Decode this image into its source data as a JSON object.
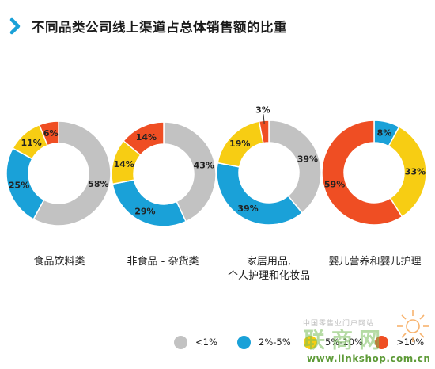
{
  "header": {
    "title": "不同品类公司线上渠道占总体销售额的比重",
    "chevron_icon": "chevron-right-icon"
  },
  "colors": {
    "lt1": "#c2c2c2",
    "p2_5": "#1aa1d8",
    "p5_10": "#f7cd13",
    "gt10": "#ef4e23",
    "accent": "#1aa1d8"
  },
  "chart_data": {
    "type": "pie",
    "donut": true,
    "legend_position": "bottom",
    "series_names": [
      "<1%",
      "2%-5%",
      "5%-10%",
      ">10%"
    ],
    "charts": [
      {
        "category": "食品饮料类",
        "values": [
          58,
          25,
          11,
          6
        ]
      },
      {
        "category": "非食品 - 杂货类",
        "values": [
          43,
          29,
          14,
          14
        ]
      },
      {
        "category": "家居用品,\n个人护理和化妆品",
        "values": [
          39,
          39,
          19,
          3
        ]
      },
      {
        "category": "婴儿营养和婴儿护理",
        "values": [
          0,
          8,
          33,
          59
        ]
      }
    ]
  },
  "legend": {
    "items": [
      {
        "label": "<1%",
        "icon": "gray-dot-icon"
      },
      {
        "label": "2%-5%",
        "icon": "blue-dot-icon"
      },
      {
        "label": "5%-10%",
        "icon": "yellow-dot-icon"
      },
      {
        "label": ">10%",
        "icon": "red-dot-icon"
      }
    ]
  },
  "watermark": {
    "top_text": "中国零售业门户网站",
    "logo_text": "联商网",
    "url_text": "www.linkshop.com.cn"
  }
}
